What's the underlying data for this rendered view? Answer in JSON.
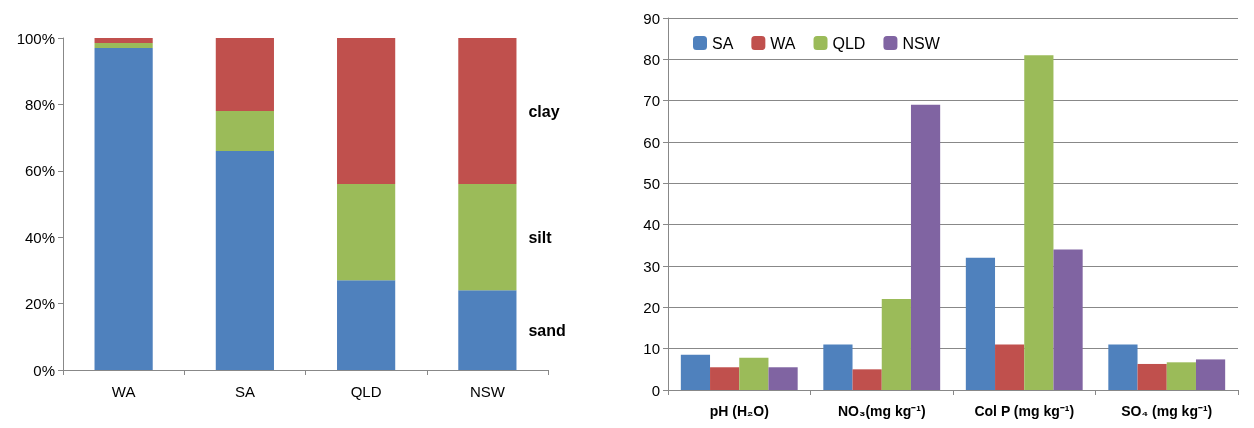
{
  "chart_data": [
    {
      "type": "bar",
      "stacked": true,
      "categories": [
        "WA",
        "SA",
        "QLD",
        "NSW"
      ],
      "series": [
        {
          "name": "sand",
          "color": "#4f81bd",
          "values": [
            97,
            66,
            27,
            24
          ]
        },
        {
          "name": "silt",
          "color": "#9bbb59",
          "values": [
            1.5,
            12,
            29,
            32
          ]
        },
        {
          "name": "clay",
          "color": "#c0504d",
          "values": [
            1.5,
            22,
            44,
            44
          ]
        }
      ],
      "ylim": [
        0,
        100
      ],
      "yticks": [
        {
          "value": 0,
          "label": "0%"
        },
        {
          "value": 20,
          "label": "20%"
        },
        {
          "value": 40,
          "label": "40%"
        },
        {
          "value": 60,
          "label": "60%"
        },
        {
          "value": 80,
          "label": "80%"
        },
        {
          "value": 100,
          "label": "100%"
        }
      ],
      "grid": false,
      "legend": false
    },
    {
      "type": "bar",
      "categories": [
        "pH (H₂O)",
        "NO₃(mg kg⁻¹)",
        "Col P (mg kg⁻¹)",
        "SO₄ (mg kg⁻¹)"
      ],
      "series": [
        {
          "name": "SA",
          "color": "#4f81bd",
          "values": [
            8.5,
            11,
            32,
            11
          ]
        },
        {
          "name": "WA",
          "color": "#c0504d",
          "values": [
            5.5,
            5,
            11,
            6.3
          ]
        },
        {
          "name": "QLD",
          "color": "#9bbb59",
          "values": [
            7.8,
            22,
            81,
            6.7
          ]
        },
        {
          "name": "NSW",
          "color": "#8064a2",
          "values": [
            5.5,
            69,
            34,
            7.4
          ]
        }
      ],
      "ylim": [
        0,
        90
      ],
      "yticks": [
        0,
        10,
        20,
        30,
        40,
        50,
        60,
        70,
        80,
        90
      ],
      "grid": "y",
      "legend": "top left"
    }
  ]
}
